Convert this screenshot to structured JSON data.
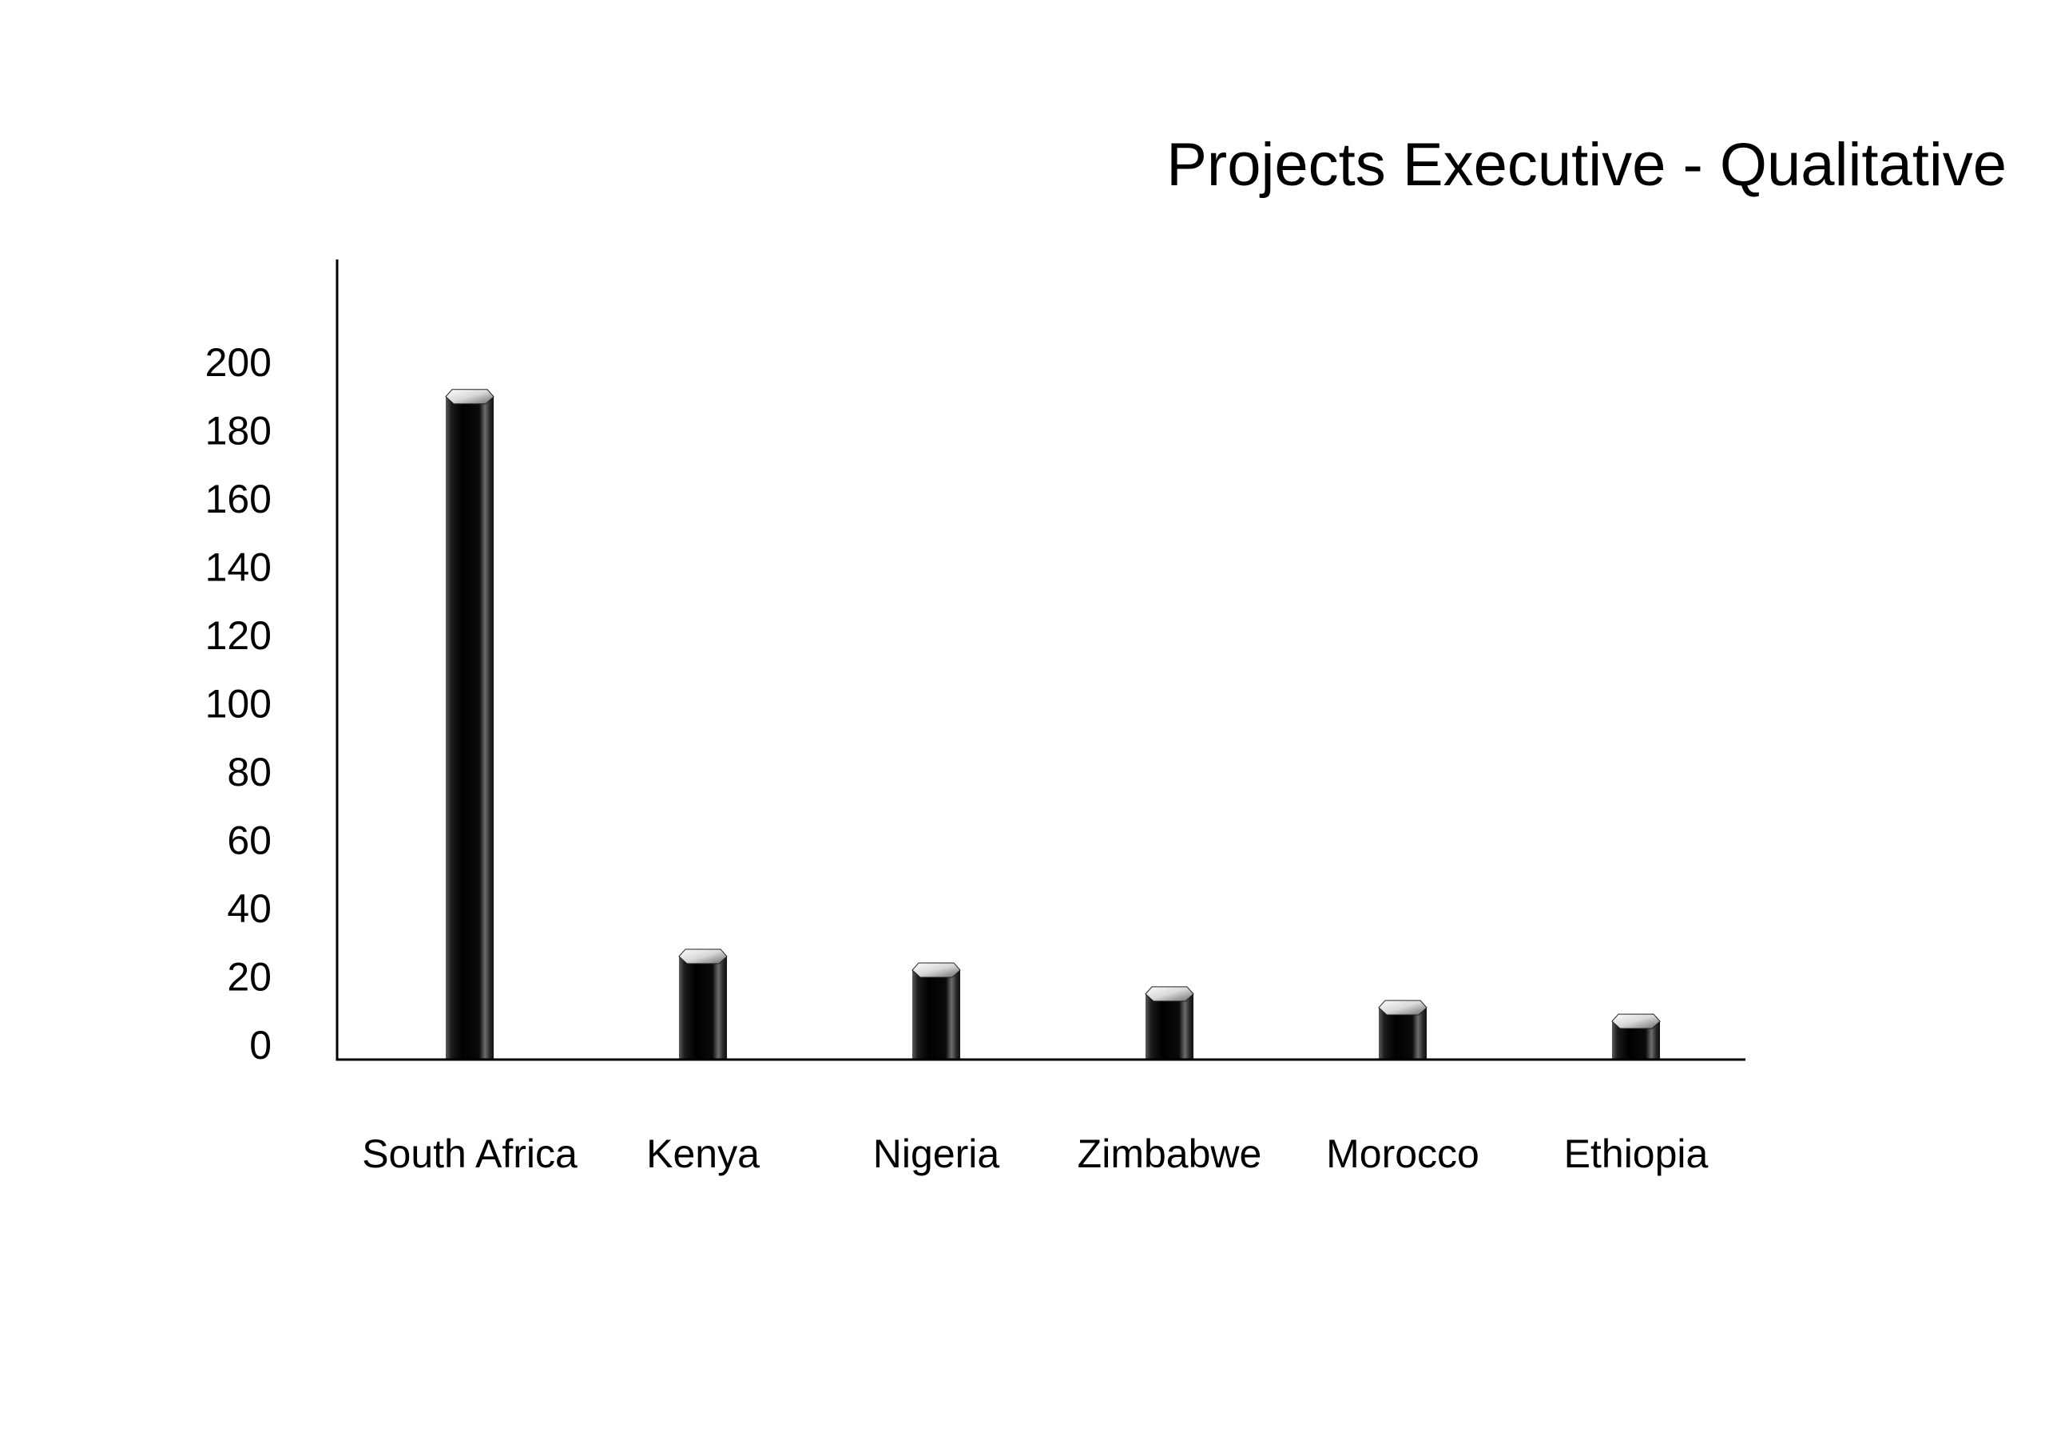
{
  "chart_data": {
    "type": "bar",
    "title": "Projects Executive - Qualitative",
    "xlabel": "",
    "ylabel": "",
    "categories": [
      "South Africa",
      "Kenya",
      "Nigeria",
      "Zimbabwe",
      "Morocco",
      "Ethiopia"
    ],
    "values": [
      190,
      26,
      22,
      15,
      11,
      7
    ],
    "ylim": [
      0,
      210
    ],
    "yticks": [
      0,
      20,
      40,
      60,
      80,
      100,
      120,
      140,
      160,
      180,
      200
    ],
    "grid": false,
    "legend": "none",
    "bar_color": "#111111"
  }
}
